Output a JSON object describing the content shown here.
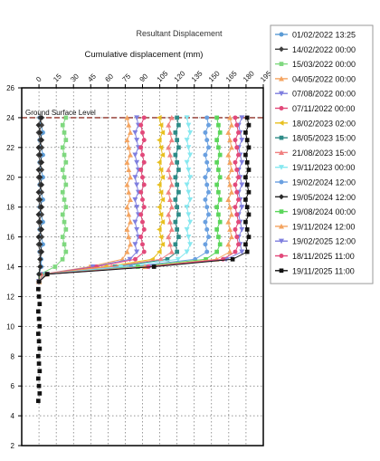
{
  "chart_data": {
    "type": "scatter",
    "title": "Resultant Displacement",
    "xlabel": "Cumulative displacement (mm)",
    "ylabel": "",
    "xlim": [
      -15,
      195
    ],
    "ylim": [
      2,
      26
    ],
    "x_ticks": [
      "0",
      "15",
      "30",
      "45",
      "60",
      "75",
      "90",
      "105",
      "120",
      "135",
      "150",
      "165",
      "180",
      "195"
    ],
    "y_ticks": [
      "2",
      "4",
      "6",
      "8",
      "10",
      "12",
      "14",
      "16",
      "18",
      "20",
      "22",
      "24",
      "26"
    ],
    "grid": true,
    "legend_position": "right",
    "reference_line": {
      "label": "Ground Surface Level",
      "y": 24,
      "color": "#a0524a"
    },
    "profile_depths": [
      24,
      23.5,
      23,
      22.5,
      22,
      21.5,
      21,
      20.5,
      20,
      19.5,
      19,
      18.5,
      18,
      17.5,
      17,
      16.5,
      16,
      15.5,
      15,
      14.5,
      14,
      13.5,
      13
    ],
    "lower_depths": [
      12.5,
      12,
      11.5,
      11,
      10.5,
      10,
      9.5,
      9,
      8.5,
      8,
      7.5,
      7,
      6.5,
      6,
      5.5,
      5
    ],
    "series": [
      {
        "name": "01/02/2022 13:25",
        "color": "#5b9bd5",
        "marker": "circle",
        "upper": 2,
        "bend": 2,
        "lower": 0
      },
      {
        "name": "14/02/2022 00:00",
        "color": "#404040",
        "marker": "diamond",
        "upper": 1,
        "bend": 1,
        "lower": 0
      },
      {
        "name": "15/03/2022 00:00",
        "color": "#7fd87f",
        "marker": "square",
        "upper": 22,
        "bend": 14,
        "lower": 0
      },
      {
        "name": "04/05/2022 00:00",
        "color": "#f4a460",
        "marker": "triangle-up",
        "upper": 78,
        "bend": 44,
        "lower": 0
      },
      {
        "name": "07/08/2022 00:00",
        "color": "#7f7fdf",
        "marker": "triangle-down",
        "upper": 85,
        "bend": 47,
        "lower": 0
      },
      {
        "name": "07/11/2022 00:00",
        "color": "#e2497a",
        "marker": "circle",
        "upper": 90,
        "bend": 50,
        "lower": 0
      },
      {
        "name": "18/02/2023 02:00",
        "color": "#e8c020",
        "marker": "triangle-left",
        "upper": 106,
        "bend": 58,
        "lower": 0
      },
      {
        "name": "18/05/2023 15:00",
        "color": "#2e8b87",
        "marker": "square",
        "upper": 120,
        "bend": 66,
        "lower": 0
      },
      {
        "name": "21/08/2023 15:00",
        "color": "#f08080",
        "marker": "triangle-up",
        "upper": 114,
        "bend": 63,
        "lower": 0
      },
      {
        "name": "19/11/2023 00:00",
        "color": "#87e8f0",
        "marker": "triangle-down",
        "upper": 130,
        "bend": 71,
        "lower": 0
      },
      {
        "name": "19/02/2024 12:00",
        "color": "#6aa0e0",
        "marker": "circle",
        "upper": 146,
        "bend": 80,
        "lower": 0
      },
      {
        "name": "19/05/2024 12:00",
        "color": "#2a2a2a",
        "marker": "diamond",
        "upper": 1,
        "bend": 1,
        "lower": 0
      },
      {
        "name": "19/08/2024 00:00",
        "color": "#5cd65c",
        "marker": "square",
        "upper": 156,
        "bend": 86,
        "lower": 0
      },
      {
        "name": "19/11/2024 12:00",
        "color": "#f4a460",
        "marker": "triangle-up",
        "upper": 166,
        "bend": 92,
        "lower": 0
      },
      {
        "name": "19/02/2025 12:00",
        "color": "#7f7fdf",
        "marker": "triangle-down",
        "upper": 175,
        "bend": 96,
        "lower": 0
      },
      {
        "name": "18/11/2025 11:00",
        "color": "#e2497a",
        "marker": "circle",
        "upper": 172,
        "bend": 95,
        "lower": 0
      },
      {
        "name": "19/11/2025 11:00",
        "color": "#111111",
        "marker": "square",
        "upper": 181,
        "bend": 100,
        "lower": 0
      }
    ]
  }
}
